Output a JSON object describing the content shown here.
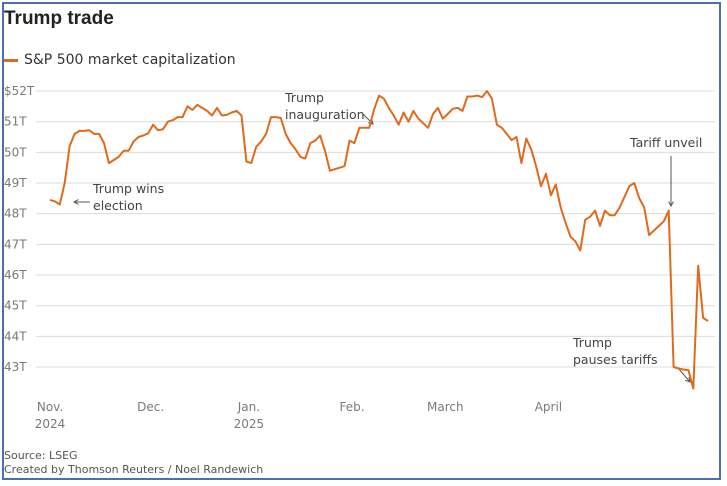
{
  "chart_data": {
    "type": "line",
    "title": "Trump trade",
    "legend": [
      "S&P 500 market capitalization"
    ],
    "ylabel": "",
    "xlabel": "",
    "ylim": [
      42,
      52.3
    ],
    "y_ticks": [
      {
        "value": 52,
        "label": "$52T"
      },
      {
        "value": 51,
        "label": "51T"
      },
      {
        "value": 50,
        "label": "50T"
      },
      {
        "value": 49,
        "label": "49T"
      },
      {
        "value": 48,
        "label": "48T"
      },
      {
        "value": 47,
        "label": "47T"
      },
      {
        "value": 46,
        "label": "46T"
      },
      {
        "value": 45,
        "label": "45T"
      },
      {
        "value": 44,
        "label": "44T"
      },
      {
        "value": 43,
        "label": "43T"
      }
    ],
    "x_ticks": [
      {
        "index": 0,
        "line1": "Nov.",
        "line2": "2024"
      },
      {
        "index": 20.5,
        "line1": "Dec.",
        "line2": ""
      },
      {
        "index": 40.5,
        "line1": "Jan.",
        "line2": "2025"
      },
      {
        "index": 61.5,
        "line1": "Feb.",
        "line2": ""
      },
      {
        "index": 80.5,
        "line1": "March",
        "line2": ""
      },
      {
        "index": 101.5,
        "line1": "April",
        "line2": ""
      }
    ],
    "series": [
      {
        "name": "S&P 500 market capitalization",
        "color": "#e06a1c",
        "values": [
          48.45,
          48.4,
          48.3,
          49.0,
          50.2,
          50.6,
          50.7,
          50.7,
          50.72,
          50.6,
          50.6,
          50.3,
          49.65,
          49.75,
          49.85,
          50.05,
          50.05,
          50.35,
          50.5,
          50.55,
          50.62,
          50.9,
          50.72,
          50.75,
          51.0,
          51.05,
          51.15,
          51.15,
          51.5,
          51.38,
          51.55,
          51.45,
          51.35,
          51.2,
          51.45,
          51.2,
          51.22,
          51.3,
          51.35,
          51.2,
          49.7,
          49.65,
          50.18,
          50.35,
          50.6,
          51.15,
          51.15,
          51.12,
          50.6,
          50.3,
          50.1,
          49.85,
          49.8,
          50.3,
          50.38,
          50.55,
          50.05,
          49.4,
          49.45,
          49.5,
          49.55,
          50.38,
          50.3,
          50.8,
          50.8,
          50.8,
          51.4,
          51.85,
          51.75,
          51.45,
          51.2,
          50.9,
          51.3,
          51.0,
          51.35,
          51.1,
          50.95,
          50.8,
          51.25,
          51.45,
          51.1,
          51.25,
          51.42,
          51.45,
          51.35,
          51.82,
          51.82,
          51.85,
          51.8,
          52.0,
          51.75,
          50.9,
          50.8,
          50.6,
          50.4,
          50.5,
          49.65,
          50.45,
          50.1,
          49.55,
          48.9,
          49.3,
          48.6,
          48.95,
          48.2,
          47.7,
          47.25,
          47.1,
          46.8,
          47.8,
          47.9,
          48.1,
          47.6,
          48.1,
          47.95,
          47.95,
          48.2,
          48.55,
          48.9,
          49.0,
          48.5,
          48.2,
          47.3,
          47.45,
          47.6,
          47.75,
          48.1,
          43.0,
          42.95,
          42.92,
          42.9,
          42.3,
          46.3,
          44.6,
          44.5
        ]
      }
    ],
    "annotations": [
      {
        "lines": [
          "Trump wins",
          "election"
        ]
      },
      {
        "lines": [
          "Trump",
          "inauguration"
        ]
      },
      {
        "lines": [
          "Tariff unveil"
        ]
      },
      {
        "lines": [
          "Trump",
          "pauses tariffs"
        ]
      }
    ]
  },
  "source": "Source: LSEG",
  "credit": "Created by Thomson Reuters / Noel Randewich"
}
